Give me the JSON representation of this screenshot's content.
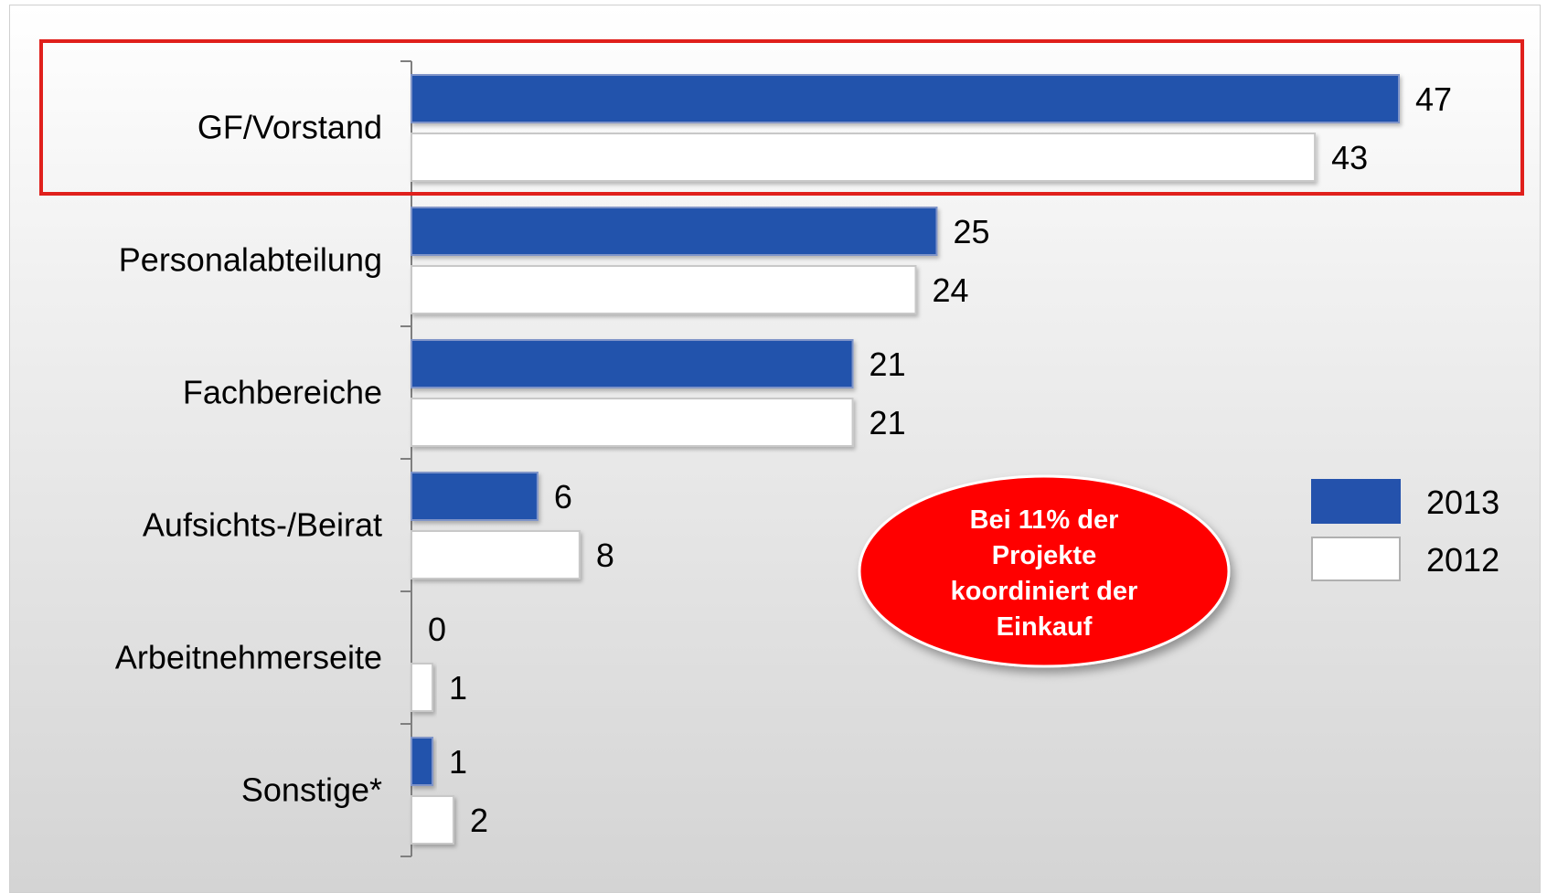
{
  "chart_data": {
    "type": "bar",
    "orientation": "horizontal",
    "categories": [
      "GF/Vorstand",
      "Personalabteilung",
      "Fachbereiche",
      "Aufsichts-/Beirat",
      "Arbeitnehmerseite",
      "Sonstige*"
    ],
    "series": [
      {
        "name": "2013",
        "values": [
          47,
          25,
          21,
          6,
          0,
          1
        ],
        "color": "#2452ac"
      },
      {
        "name": "2012",
        "values": [
          43,
          24,
          21,
          8,
          1,
          2
        ],
        "color": "#ffffff"
      }
    ],
    "xlim": [
      0,
      47
    ],
    "legend_position": "right",
    "highlighted_category": "GF/Vorstand",
    "highlight_color": "#e0201c",
    "callout": {
      "lines": [
        "Bei 11% der",
        "Projekte",
        "koordiniert der",
        "Einkauf"
      ],
      "color": "#ff0000"
    }
  }
}
